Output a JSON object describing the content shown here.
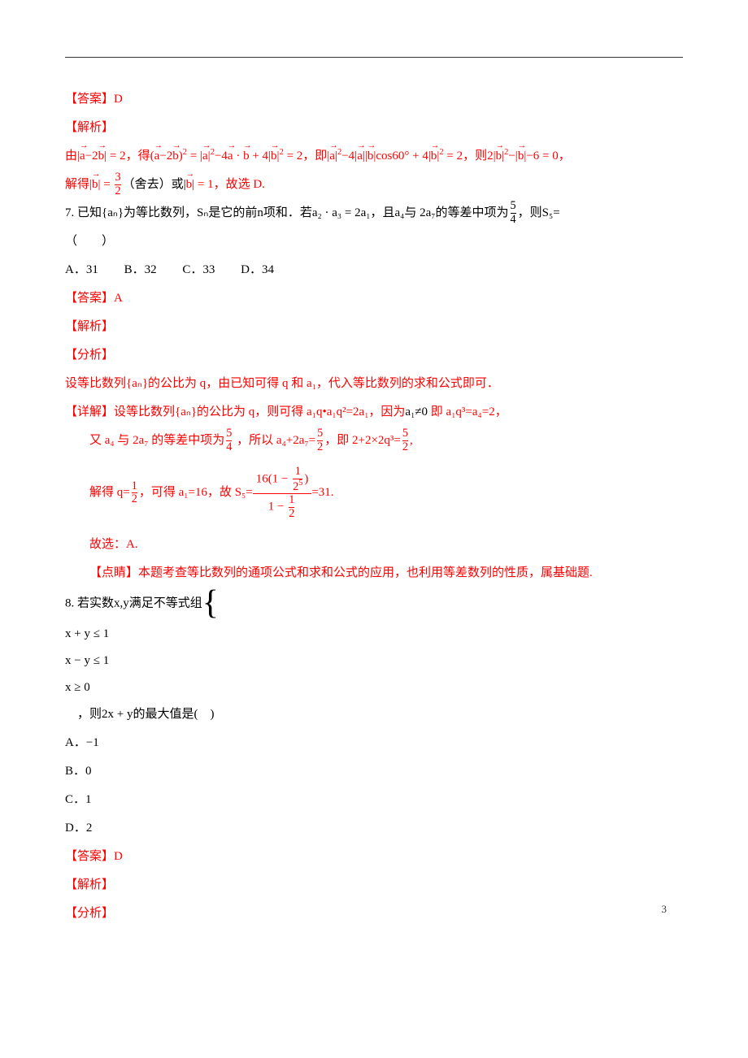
{
  "colors": {
    "red": "#ff0000",
    "black": "#000000",
    "blue": "#0000ff"
  },
  "page_number": "3",
  "q6": {
    "ans_label": "【答案】D",
    "exp_label": "【解析】",
    "line1a": "由",
    "line1b": "|",
    "vec_a": "a",
    "minus2": "−2",
    "vec_b": "b",
    "line1c": "| = 2，得(",
    "line1d": ")",
    "sq": "2",
    "eq1": " = |",
    "eq1b": "|",
    "eq1c": "−4",
    "dot": " · ",
    "plus4": " + 4|",
    "eq2": " = 2，即|",
    "eq2b": "−4|",
    "eq2c": "||",
    "cos": "|cos60° + 4|",
    "eq3": " = 2，则2|",
    "eq3b": "−|",
    "eq3c": "|−6 = 0，",
    "line2a": "解得|",
    "line2b": "| = ",
    "frac_n": "3",
    "frac_d": "2",
    "line2c": "（舍去）或|",
    "line2d": "| = 1，故选 D."
  },
  "q7": {
    "stem1": "7. 已知{aₙ}为等比数列，Sₙ是它的前n项和．若a₂ · a₃ = 2a₁，且a₄与 2a₇的等差中项为",
    "frac54_n": "5",
    "frac54_d": "4",
    "stem2": "，则S₅=",
    "paren": "（　　）",
    "optA": "A．31",
    "optB": "B．32",
    "optC": "C．33",
    "optD": "D．34",
    "ans": "【答案】A",
    "exp": "【解析】",
    "ana": "【分析】",
    "ana_text": "设等比数列{aₙ}的公比为 q，由已知可得 q 和 a₁，代入等比数列的求和公式即可．",
    "det_label": "【详解】",
    "det1": "设等比数列{aₙ}的公比为 q，则可得 a₁q•a₁q²=2a₁，因为",
    "det1b": "a₁≠0",
    "det1c": " 即 a₁q³=a₄=2，",
    "det2a": "又 a₄ 与 2a₇ 的等差中项为",
    "det2b": " ，所以 a₄+2a₇=",
    "frac52_n": "5",
    "frac52_d": "2",
    "det2c": "，即 2+2×2q³=",
    "det2d": ",",
    "det3a": "解得 q=",
    "frac12_n": "1",
    "frac12_d": "2",
    "det3b": "，可得 a₁=16，故 S₅=",
    "bf_num1": "16(1 − ",
    "bf_num_fn": "1",
    "bf_num_fd": "2",
    "bf_num_pow": "5",
    "bf_num2": ")",
    "bf_den1": "1 − ",
    "det3c": "=31.",
    "choose": "故选：A.",
    "pt_label": "【点睛】",
    "pt_text": "本题考查等比数列的通项公式和求和公式的应用，也利用等差数列的性质，属基础题."
  },
  "q8": {
    "stem1": "8. 若实数x,y满足不等式组",
    "sys1": "x + y ≤ 1",
    "sys2": "x − y ≤ 1",
    "sys3": "x ≥ 0",
    "stem2": "　，则2x + y的最大值是(　)",
    "optA": "A．−1",
    "optB": "B．0",
    "optC": "C．1",
    "optD": "D．2",
    "ans": "【答案】D",
    "exp": "【解析】",
    "ana": "【分析】"
  }
}
